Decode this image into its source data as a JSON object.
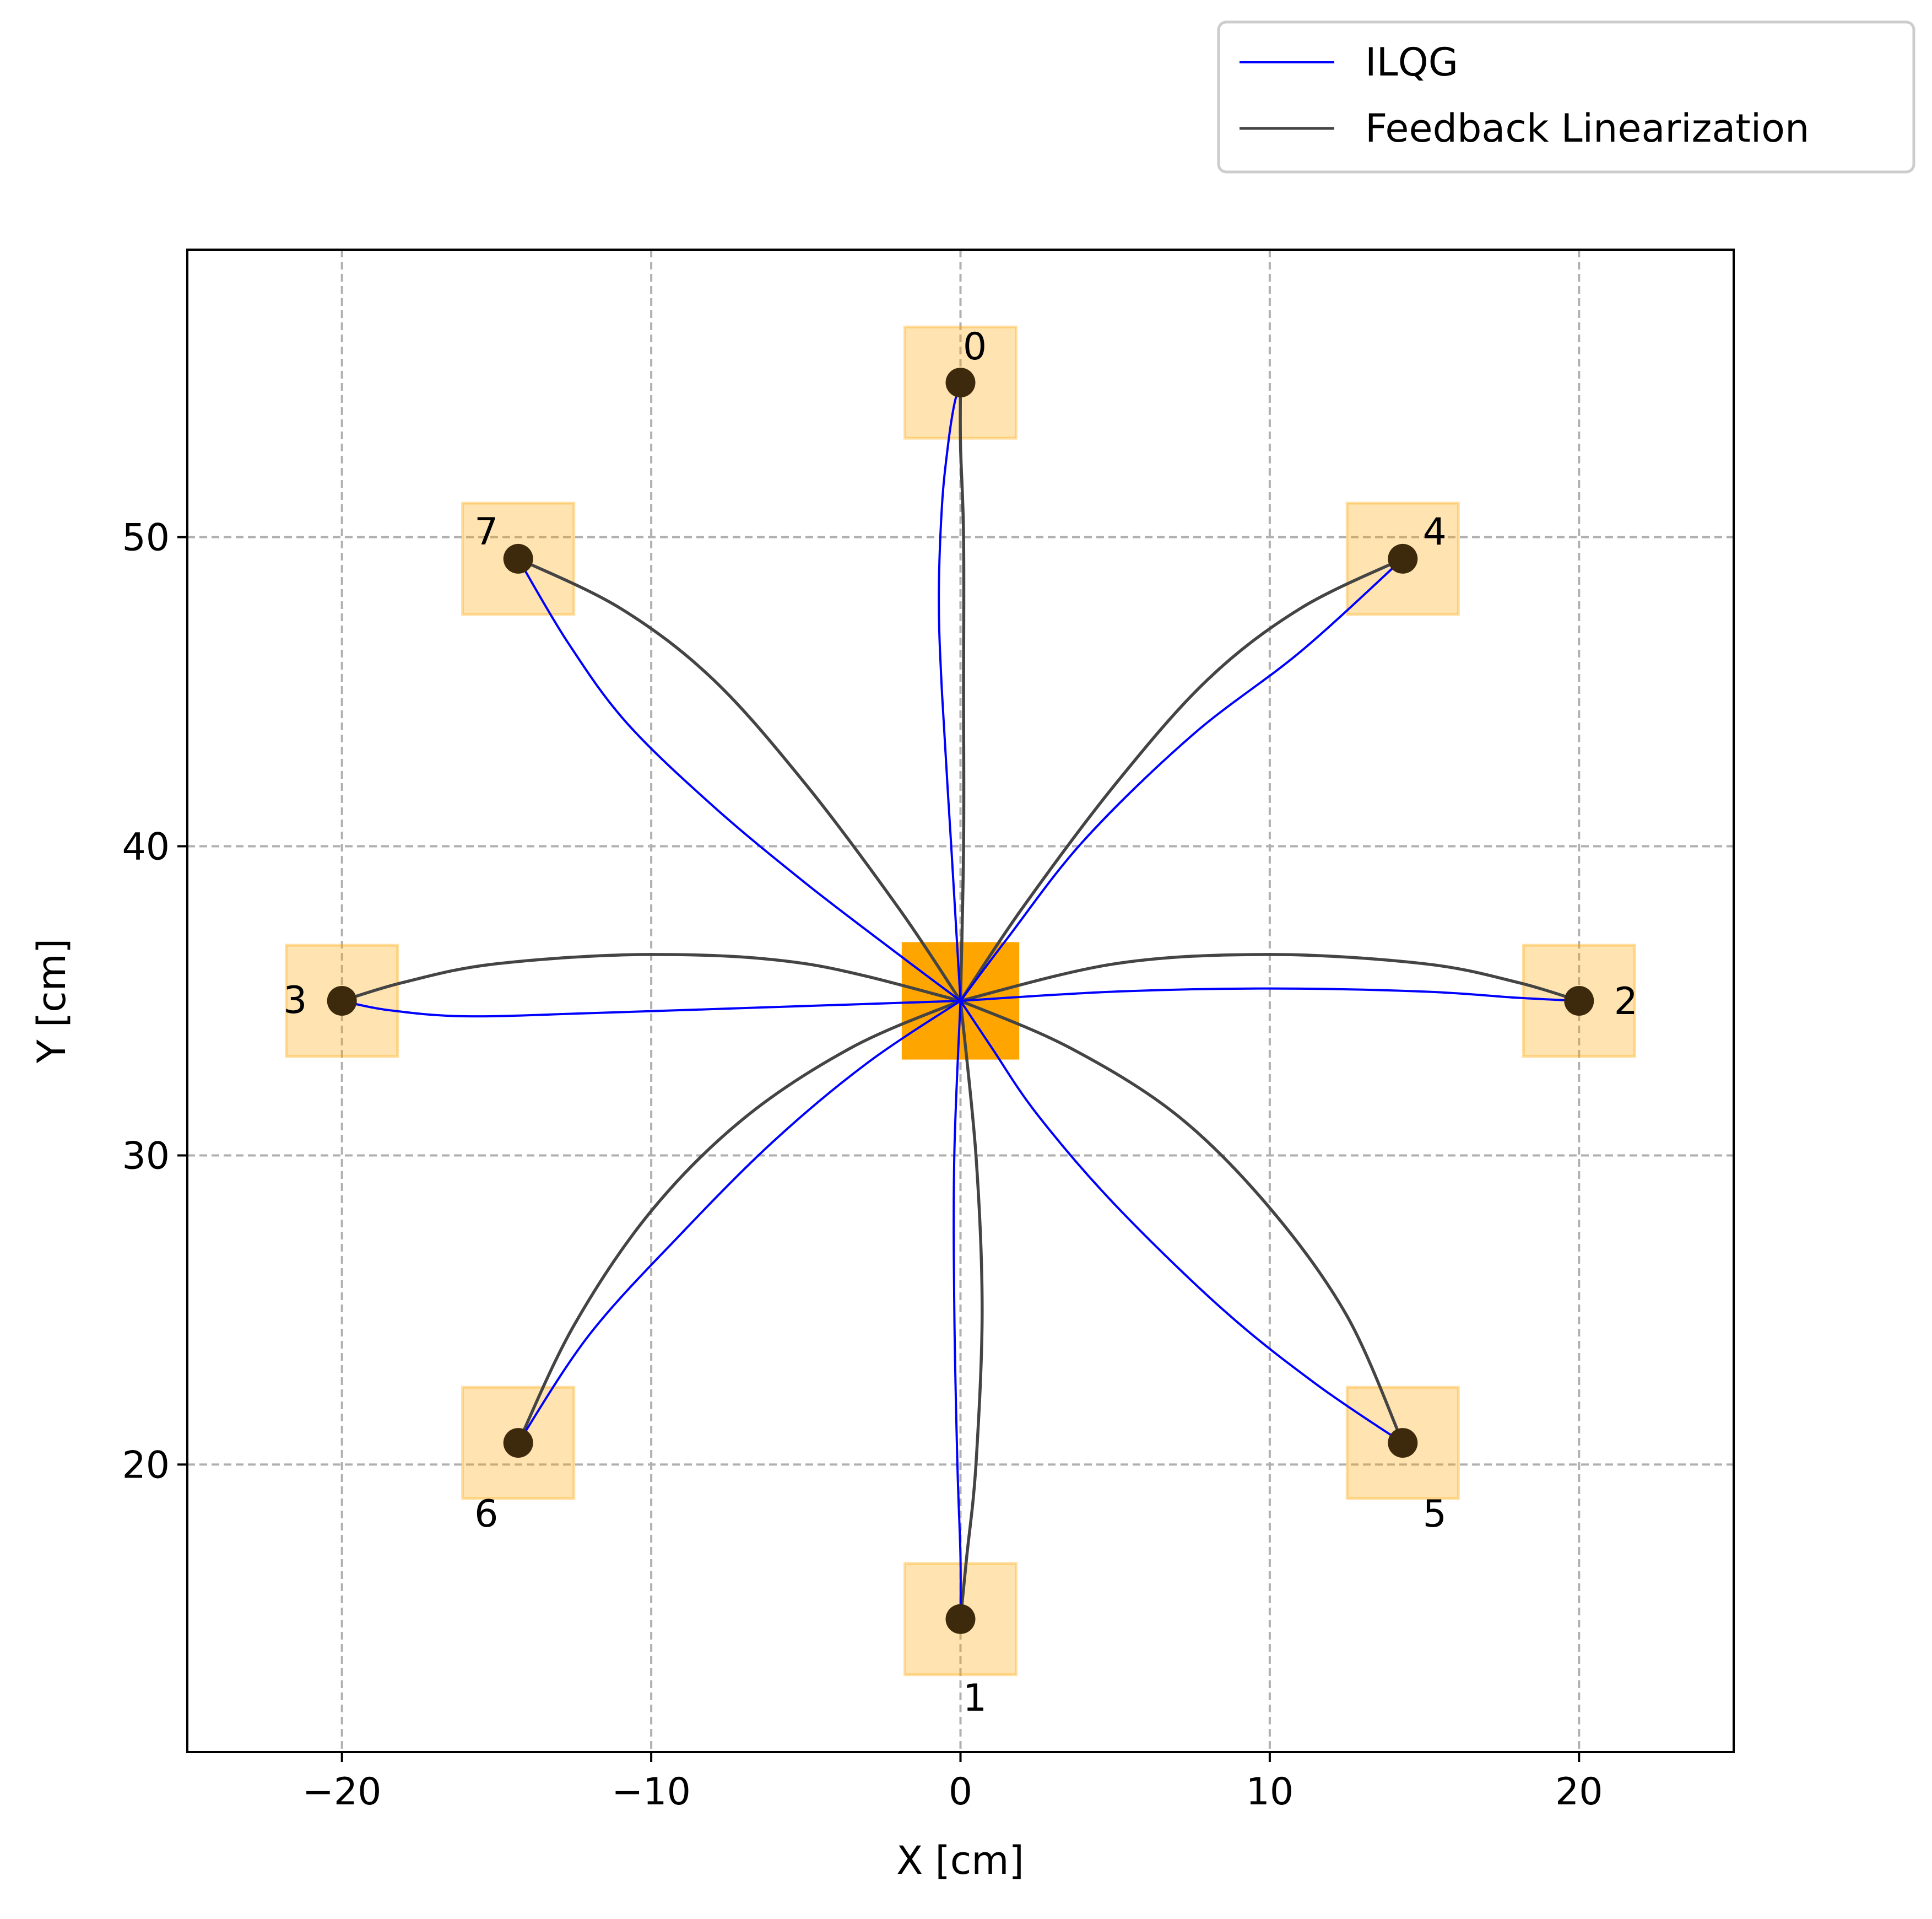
{
  "chart_data": {
    "type": "line",
    "xlabel": "X [cm]",
    "ylabel": "Y [cm]",
    "xlim": [
      -25,
      25
    ],
    "ylim": [
      10.7,
      59.3
    ],
    "xticks": [
      -20,
      -10,
      0,
      10,
      20
    ],
    "xtick_labels": [
      "−20",
      "−10",
      "0",
      "10",
      "20"
    ],
    "yticks": [
      20,
      30,
      40,
      50
    ],
    "ytick_labels": [
      "20",
      "30",
      "40",
      "50"
    ],
    "grid": true,
    "legend_position": "top-right, outside the axes",
    "start": {
      "x": 0,
      "y": 35,
      "color": "#ffa500"
    },
    "target_color": "#ffa500",
    "marker_color": "#3d2a0c",
    "targets": [
      {
        "label": "0",
        "x": 0,
        "y": 55
      },
      {
        "label": "1",
        "x": 0,
        "y": 15
      },
      {
        "label": "2",
        "x": 20,
        "y": 35
      },
      {
        "label": "3",
        "x": -20,
        "y": 35
      },
      {
        "label": "4",
        "x": 14.3,
        "y": 49.3
      },
      {
        "label": "5",
        "x": 14.3,
        "y": 20.7
      },
      {
        "label": "6",
        "x": -14.3,
        "y": 20.7
      },
      {
        "label": "7",
        "x": -14.3,
        "y": 49.3
      }
    ],
    "series": [
      {
        "name": "ILQG",
        "color": "#0000ff",
        "paths": [
          [
            [
              0,
              35
            ],
            [
              -0.3,
              40
            ],
            [
              -0.6,
              45
            ],
            [
              -0.7,
              48
            ],
            [
              -0.6,
              51
            ],
            [
              -0.4,
              53
            ],
            [
              -0.2,
              54.3
            ],
            [
              0,
              55
            ]
          ],
          [
            [
              0,
              35
            ],
            [
              -0.2,
              30
            ],
            [
              -0.2,
              25
            ],
            [
              -0.1,
              20
            ],
            [
              0,
              17
            ],
            [
              0,
              15
            ]
          ],
          [
            [
              0,
              35
            ],
            [
              5,
              35.3
            ],
            [
              10,
              35.4
            ],
            [
              15,
              35.3
            ],
            [
              18,
              35.1
            ],
            [
              20,
              35
            ]
          ],
          [
            [
              0,
              35
            ],
            [
              -6,
              34.8
            ],
            [
              -12,
              34.6
            ],
            [
              -16,
              34.5
            ],
            [
              -18.5,
              34.7
            ],
            [
              -20,
              35
            ]
          ],
          [
            [
              0,
              35
            ],
            [
              1.5,
              37
            ],
            [
              4,
              40.2
            ],
            [
              7.5,
              43.6
            ],
            [
              11,
              46.3
            ],
            [
              14.3,
              49.3
            ]
          ],
          [
            [
              0,
              35
            ],
            [
              1,
              33.5
            ],
            [
              2.5,
              31.3
            ],
            [
              5,
              28.4
            ],
            [
              8.5,
              25
            ],
            [
              11.5,
              22.6
            ],
            [
              14.3,
              20.7
            ]
          ],
          [
            [
              0,
              35
            ],
            [
              -3,
              33
            ],
            [
              -6,
              30.5
            ],
            [
              -9,
              27.5
            ],
            [
              -12,
              24.2
            ],
            [
              -14.3,
              20.7
            ]
          ],
          [
            [
              0,
              35
            ],
            [
              -2,
              36.5
            ],
            [
              -5,
              38.8
            ],
            [
              -8,
              41.3
            ],
            [
              -10.8,
              44
            ],
            [
              -12.7,
              46.6
            ],
            [
              -14.3,
              49.3
            ]
          ]
        ]
      },
      {
        "name": "Feedback Linearization",
        "color": "#444444",
        "paths": [
          [
            [
              0,
              35
            ],
            [
              0.1,
              40
            ],
            [
              0.1,
              45
            ],
            [
              0.1,
              50
            ],
            [
              0,
              53
            ],
            [
              0,
              55
            ]
          ],
          [
            [
              0,
              35
            ],
            [
              0.5,
              30
            ],
            [
              0.7,
              25
            ],
            [
              0.5,
              20
            ],
            [
              0.2,
              17
            ],
            [
              0,
              15
            ]
          ],
          [
            [
              0,
              35
            ],
            [
              5,
              36.2
            ],
            [
              10,
              36.5
            ],
            [
              15,
              36.2
            ],
            [
              18,
              35.6
            ],
            [
              20,
              35
            ]
          ],
          [
            [
              0,
              35
            ],
            [
              -5,
              36.2
            ],
            [
              -10,
              36.5
            ],
            [
              -15,
              36.2
            ],
            [
              -18,
              35.6
            ],
            [
              -20,
              35
            ]
          ],
          [
            [
              0,
              35
            ],
            [
              2,
              38
            ],
            [
              5,
              42
            ],
            [
              8,
              45.4
            ],
            [
              11,
              47.7
            ],
            [
              14.3,
              49.3
            ]
          ],
          [
            [
              0,
              35
            ],
            [
              3.5,
              33.5
            ],
            [
              7,
              31.3
            ],
            [
              10,
              28.3
            ],
            [
              12.5,
              24.8
            ],
            [
              14.3,
              20.7
            ]
          ],
          [
            [
              0,
              35
            ],
            [
              -3.5,
              33.5
            ],
            [
              -7,
              31.2
            ],
            [
              -10,
              28.2
            ],
            [
              -12.5,
              24.5
            ],
            [
              -14.3,
              20.7
            ]
          ],
          [
            [
              0,
              35
            ],
            [
              -2,
              38
            ],
            [
              -5,
              42
            ],
            [
              -8,
              45.4
            ],
            [
              -11,
              47.7
            ],
            [
              -14.3,
              49.3
            ]
          ]
        ]
      }
    ]
  }
}
